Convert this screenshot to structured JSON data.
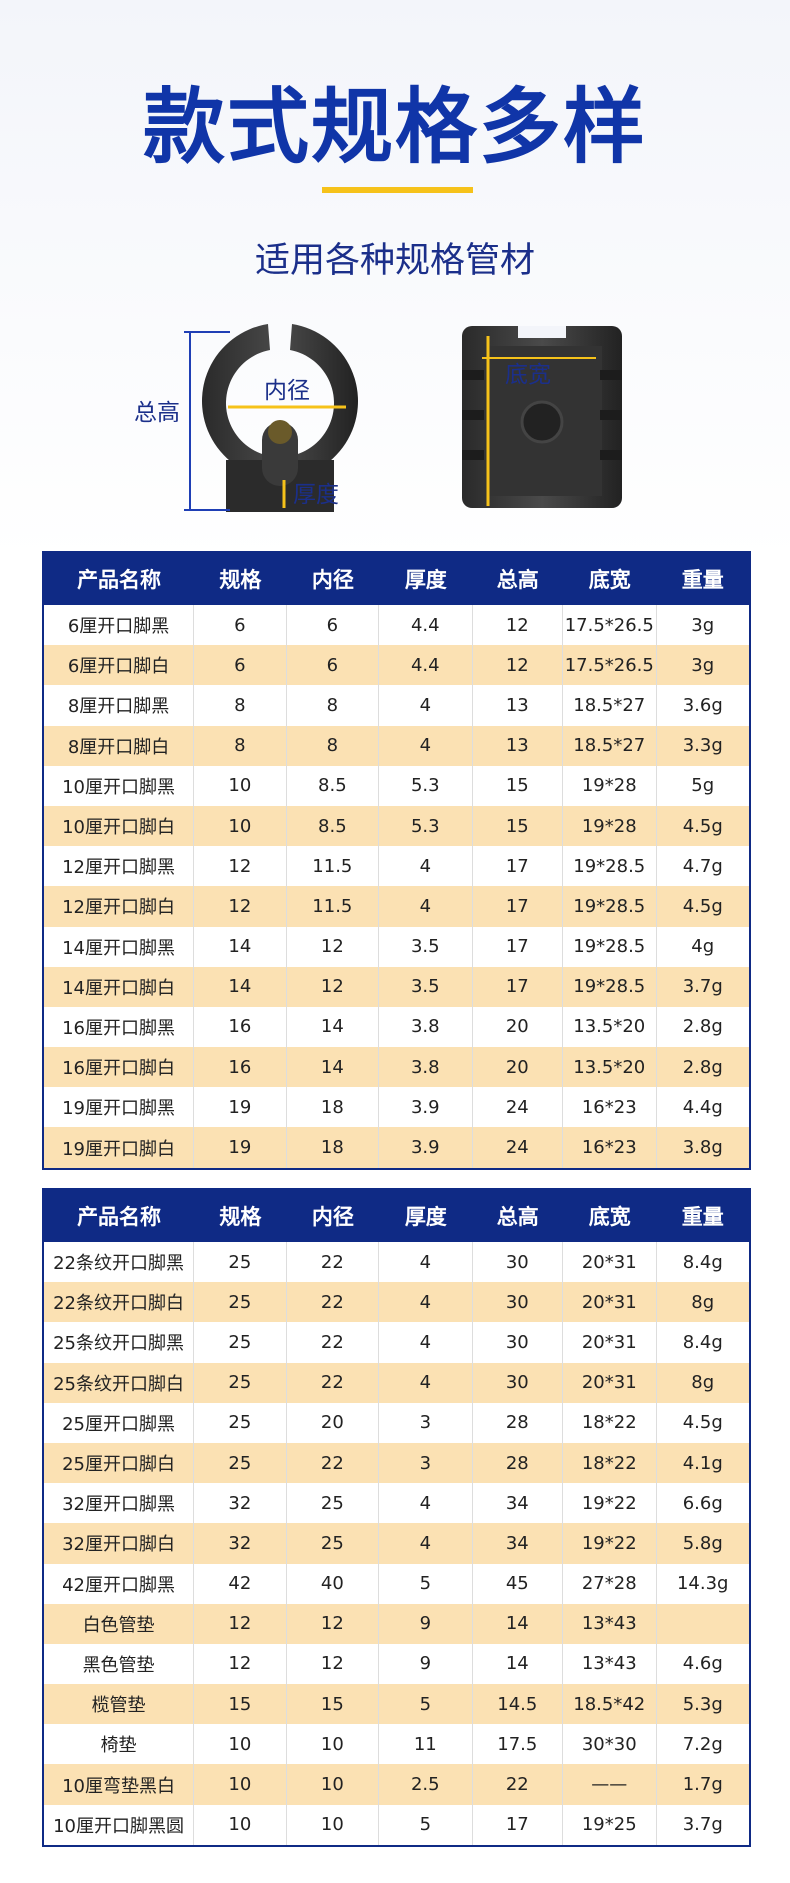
{
  "header": {
    "title": "款式规格多样",
    "subtitle": "适用各种规格管材"
  },
  "diagram": {
    "total_height": "总高",
    "inner_diameter": "内径",
    "thickness": "厚度",
    "base_width": "底宽"
  },
  "tables": [
    {
      "columns": [
        "产品名称",
        "规格",
        "内径",
        "厚度",
        "总高",
        "底宽",
        "重量"
      ],
      "rows": [
        [
          "6厘开口脚黑",
          6,
          6,
          4.4,
          12,
          "17.5*26.5",
          "3g"
        ],
        [
          "6厘开口脚白",
          6,
          6,
          4.4,
          12,
          "17.5*26.5",
          "3g"
        ],
        [
          "8厘开口脚黑",
          8,
          8,
          4,
          13,
          "18.5*27",
          "3.6g"
        ],
        [
          "8厘开口脚白",
          8,
          8,
          4,
          13,
          "18.5*27",
          "3.3g"
        ],
        [
          "10厘开口脚黑",
          10,
          8.5,
          5.3,
          15,
          "19*28",
          "5g"
        ],
        [
          "10厘开口脚白",
          10,
          8.5,
          5.3,
          15,
          "19*28",
          "4.5g"
        ],
        [
          "12厘开口脚黑",
          12,
          11.5,
          4,
          17,
          "19*28.5",
          "4.7g"
        ],
        [
          "12厘开口脚白",
          12,
          11.5,
          4,
          17,
          "19*28.5",
          "4.5g"
        ],
        [
          "14厘开口脚黑",
          14,
          12,
          3.5,
          17,
          "19*28.5",
          "4g"
        ],
        [
          "14厘开口脚白",
          14,
          12,
          3.5,
          17,
          "19*28.5",
          "3.7g"
        ],
        [
          "16厘开口脚黑",
          16,
          14,
          3.8,
          20,
          "13.5*20",
          "2.8g"
        ],
        [
          "16厘开口脚白",
          16,
          14,
          3.8,
          20,
          "13.5*20",
          "2.8g"
        ],
        [
          "19厘开口脚黑",
          19,
          18,
          3.9,
          24,
          "16*23",
          "4.4g"
        ],
        [
          "19厘开口脚白",
          19,
          18,
          3.9,
          24,
          "16*23",
          "3.8g"
        ]
      ]
    },
    {
      "columns": [
        "产品名称",
        "规格",
        "内径",
        "厚度",
        "总高",
        "底宽",
        "重量"
      ],
      "rows": [
        [
          "22条纹开口脚黑",
          25,
          22,
          4,
          30,
          "20*31",
          "8.4g"
        ],
        [
          "22条纹开口脚白",
          25,
          22,
          4,
          30,
          "20*31",
          "8g"
        ],
        [
          "25条纹开口脚黑",
          25,
          22,
          4,
          30,
          "20*31",
          "8.4g"
        ],
        [
          "25条纹开口脚白",
          25,
          22,
          4,
          30,
          "20*31",
          "8g"
        ],
        [
          "25厘开口脚黑",
          25,
          20,
          3,
          28,
          "18*22",
          "4.5g"
        ],
        [
          "25厘开口脚白",
          25,
          22,
          3,
          28,
          "18*22",
          "4.1g"
        ],
        [
          "32厘开口脚黑",
          32,
          25,
          4,
          34,
          "19*22",
          "6.6g"
        ],
        [
          "32厘开口脚白",
          32,
          25,
          4,
          34,
          "19*22",
          "5.8g"
        ],
        [
          "42厘开口脚黑",
          42,
          40,
          5,
          45,
          "27*28",
          "14.3g"
        ],
        [
          "白色管垫",
          12,
          12,
          9,
          14,
          "13*43",
          null
        ],
        [
          "黑色管垫",
          12,
          12,
          9,
          14,
          "13*43",
          "4.6g"
        ],
        [
          "榄管垫",
          15,
          15,
          5,
          14.5,
          "18.5*42",
          "5.3g"
        ],
        [
          "椅垫",
          10,
          10,
          11,
          17.5,
          "30*30",
          "7.2g"
        ],
        [
          "10厘弯垫黑白",
          10,
          10,
          2.5,
          22,
          "——",
          "1.7g"
        ],
        [
          "10厘开口脚黑圆",
          10,
          10,
          5,
          17,
          "19*25",
          "3.7g"
        ]
      ]
    }
  ]
}
